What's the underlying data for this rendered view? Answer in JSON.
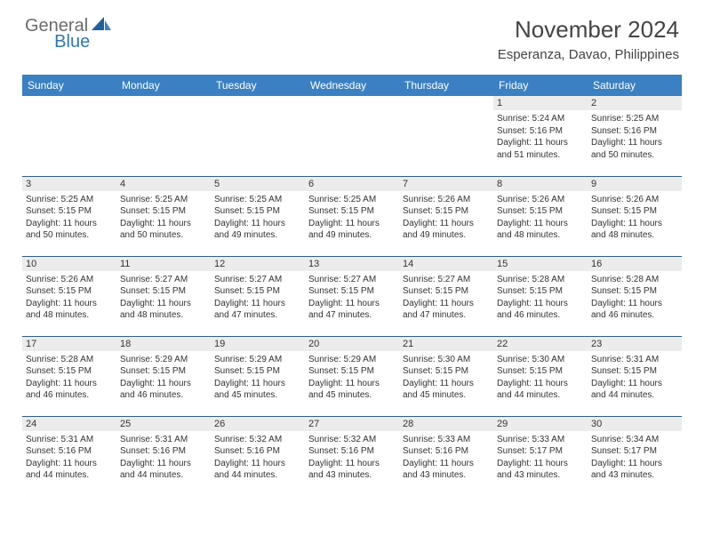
{
  "logo": {
    "general": "General",
    "blue": "Blue"
  },
  "title": "November 2024",
  "location": "Esperanza, Davao, Philippines",
  "colors": {
    "header_bg": "#3a80c2",
    "header_text": "#ffffff",
    "daynum_bg": "#ececec",
    "cell_border": "#2f5f8f",
    "text": "#333333",
    "logo_gray": "#6b6b6b",
    "logo_blue": "#2f77bb",
    "background": "#ffffff"
  },
  "weekdays": [
    "Sunday",
    "Monday",
    "Tuesday",
    "Wednesday",
    "Thursday",
    "Friday",
    "Saturday"
  ],
  "weeks": [
    [
      null,
      null,
      null,
      null,
      null,
      {
        "n": "1",
        "sunrise": "5:24 AM",
        "sunset": "5:16 PM",
        "dl_h": "11",
        "dl_m": "51"
      },
      {
        "n": "2",
        "sunrise": "5:25 AM",
        "sunset": "5:16 PM",
        "dl_h": "11",
        "dl_m": "50"
      }
    ],
    [
      {
        "n": "3",
        "sunrise": "5:25 AM",
        "sunset": "5:15 PM",
        "dl_h": "11",
        "dl_m": "50"
      },
      {
        "n": "4",
        "sunrise": "5:25 AM",
        "sunset": "5:15 PM",
        "dl_h": "11",
        "dl_m": "50"
      },
      {
        "n": "5",
        "sunrise": "5:25 AM",
        "sunset": "5:15 PM",
        "dl_h": "11",
        "dl_m": "49"
      },
      {
        "n": "6",
        "sunrise": "5:25 AM",
        "sunset": "5:15 PM",
        "dl_h": "11",
        "dl_m": "49"
      },
      {
        "n": "7",
        "sunrise": "5:26 AM",
        "sunset": "5:15 PM",
        "dl_h": "11",
        "dl_m": "49"
      },
      {
        "n": "8",
        "sunrise": "5:26 AM",
        "sunset": "5:15 PM",
        "dl_h": "11",
        "dl_m": "48"
      },
      {
        "n": "9",
        "sunrise": "5:26 AM",
        "sunset": "5:15 PM",
        "dl_h": "11",
        "dl_m": "48"
      }
    ],
    [
      {
        "n": "10",
        "sunrise": "5:26 AM",
        "sunset": "5:15 PM",
        "dl_h": "11",
        "dl_m": "48"
      },
      {
        "n": "11",
        "sunrise": "5:27 AM",
        "sunset": "5:15 PM",
        "dl_h": "11",
        "dl_m": "48"
      },
      {
        "n": "12",
        "sunrise": "5:27 AM",
        "sunset": "5:15 PM",
        "dl_h": "11",
        "dl_m": "47"
      },
      {
        "n": "13",
        "sunrise": "5:27 AM",
        "sunset": "5:15 PM",
        "dl_h": "11",
        "dl_m": "47"
      },
      {
        "n": "14",
        "sunrise": "5:27 AM",
        "sunset": "5:15 PM",
        "dl_h": "11",
        "dl_m": "47"
      },
      {
        "n": "15",
        "sunrise": "5:28 AM",
        "sunset": "5:15 PM",
        "dl_h": "11",
        "dl_m": "46"
      },
      {
        "n": "16",
        "sunrise": "5:28 AM",
        "sunset": "5:15 PM",
        "dl_h": "11",
        "dl_m": "46"
      }
    ],
    [
      {
        "n": "17",
        "sunrise": "5:28 AM",
        "sunset": "5:15 PM",
        "dl_h": "11",
        "dl_m": "46"
      },
      {
        "n": "18",
        "sunrise": "5:29 AM",
        "sunset": "5:15 PM",
        "dl_h": "11",
        "dl_m": "46"
      },
      {
        "n": "19",
        "sunrise": "5:29 AM",
        "sunset": "5:15 PM",
        "dl_h": "11",
        "dl_m": "45"
      },
      {
        "n": "20",
        "sunrise": "5:29 AM",
        "sunset": "5:15 PM",
        "dl_h": "11",
        "dl_m": "45"
      },
      {
        "n": "21",
        "sunrise": "5:30 AM",
        "sunset": "5:15 PM",
        "dl_h": "11",
        "dl_m": "45"
      },
      {
        "n": "22",
        "sunrise": "5:30 AM",
        "sunset": "5:15 PM",
        "dl_h": "11",
        "dl_m": "44"
      },
      {
        "n": "23",
        "sunrise": "5:31 AM",
        "sunset": "5:15 PM",
        "dl_h": "11",
        "dl_m": "44"
      }
    ],
    [
      {
        "n": "24",
        "sunrise": "5:31 AM",
        "sunset": "5:16 PM",
        "dl_h": "11",
        "dl_m": "44"
      },
      {
        "n": "25",
        "sunrise": "5:31 AM",
        "sunset": "5:16 PM",
        "dl_h": "11",
        "dl_m": "44"
      },
      {
        "n": "26",
        "sunrise": "5:32 AM",
        "sunset": "5:16 PM",
        "dl_h": "11",
        "dl_m": "44"
      },
      {
        "n": "27",
        "sunrise": "5:32 AM",
        "sunset": "5:16 PM",
        "dl_h": "11",
        "dl_m": "43"
      },
      {
        "n": "28",
        "sunrise": "5:33 AM",
        "sunset": "5:16 PM",
        "dl_h": "11",
        "dl_m": "43"
      },
      {
        "n": "29",
        "sunrise": "5:33 AM",
        "sunset": "5:17 PM",
        "dl_h": "11",
        "dl_m": "43"
      },
      {
        "n": "30",
        "sunrise": "5:34 AM",
        "sunset": "5:17 PM",
        "dl_h": "11",
        "dl_m": "43"
      }
    ]
  ],
  "labels": {
    "sunrise": "Sunrise:",
    "sunset": "Sunset:",
    "daylight_prefix": "Daylight:",
    "hours_word": "hours",
    "and_word": "and",
    "minutes_word": "minutes."
  }
}
